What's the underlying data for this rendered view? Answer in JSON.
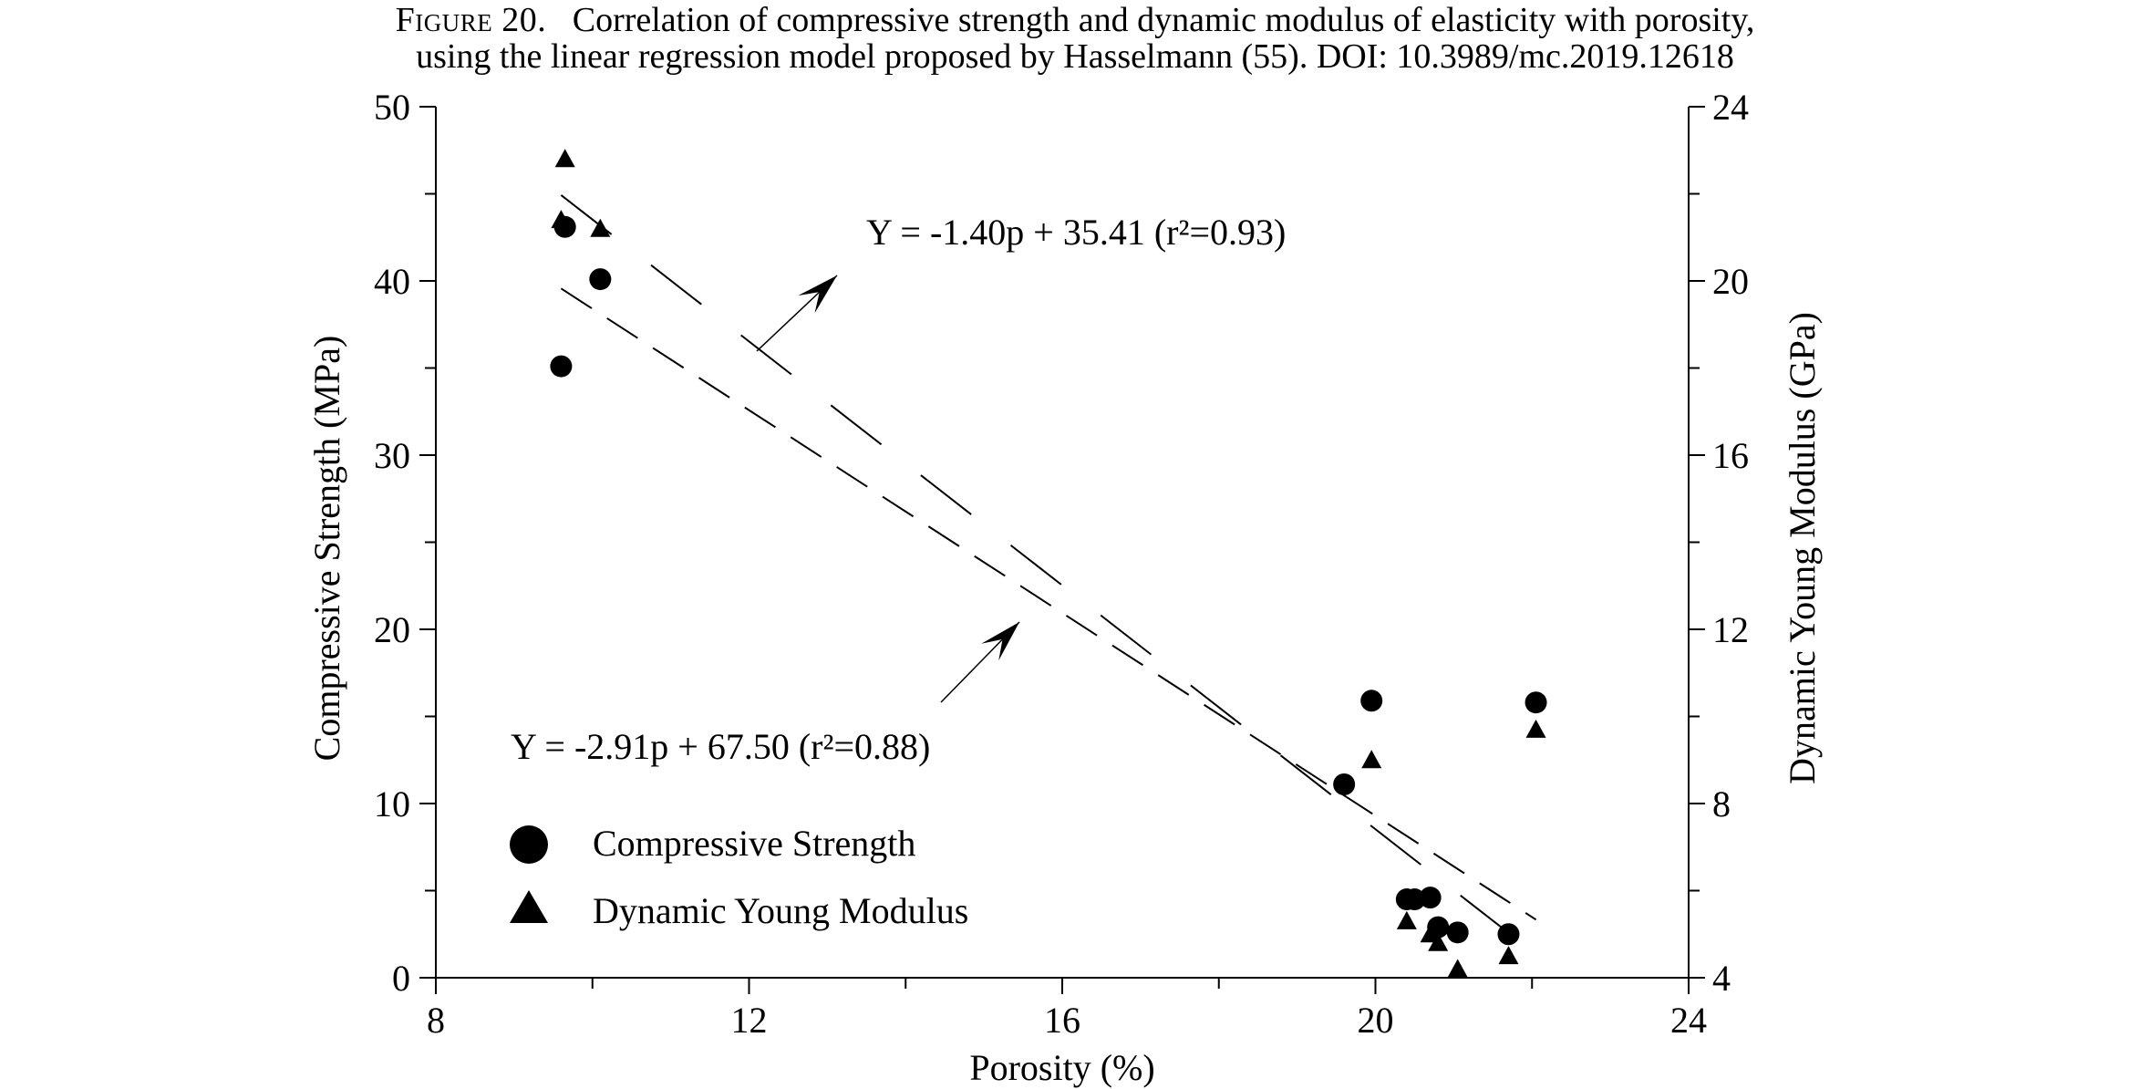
{
  "caption": {
    "label": "Figure 20.",
    "line1": "Correlation of compressive strength and dynamic modulus of elasticity with porosity,",
    "line2": "using the linear regression model proposed by Hasselmann (55). DOI: 10.3989/mc.2019.12618"
  },
  "chart_data": {
    "type": "scatter",
    "xlabel": "Porosity (%)",
    "ylabel": "Compressive Strength (MPa)",
    "y2label": "Dynamic Young Modulus (GPa)",
    "xlim": [
      8,
      24
    ],
    "ylim": [
      0,
      50
    ],
    "y2lim": [
      4,
      24
    ],
    "x_ticks": [
      8,
      12,
      16,
      20,
      24
    ],
    "y_ticks": [
      0,
      10,
      20,
      30,
      40,
      50
    ],
    "y2_ticks": [
      4,
      8,
      12,
      16,
      20,
      24
    ],
    "legend_position": "bottom-left",
    "series": [
      {
        "name": "Compressive Strength",
        "axis": "left",
        "marker": "circle",
        "x": [
          9.6,
          9.65,
          10.1,
          19.6,
          19.95,
          20.4,
          20.5,
          20.7,
          20.8,
          21.05,
          21.7,
          22.05
        ],
        "y": [
          35.1,
          43.1,
          40.1,
          11.1,
          15.9,
          4.5,
          4.5,
          4.6,
          2.9,
          2.6,
          2.5,
          15.8
        ]
      },
      {
        "name": "Dynamic Young Modulus",
        "axis": "right",
        "marker": "triangle",
        "x": [
          9.6,
          9.65,
          10.1,
          19.95,
          20.4,
          20.7,
          20.8,
          21.05,
          21.7,
          22.05
        ],
        "y": [
          21.4,
          22.8,
          21.2,
          9.0,
          5.3,
          5.0,
          4.8,
          4.2,
          4.5,
          9.7
        ]
      }
    ],
    "regressions": [
      {
        "label": "Y = -1.40p + 35.41 (r²=0.93)",
        "axis": "right",
        "slope": -1.4,
        "intercept": 35.41,
        "x_range": [
          9.6,
          22.05
        ]
      },
      {
        "label": "Y = -2.91p + 67.50 (r²=0.88)",
        "axis": "left",
        "slope": -2.91,
        "intercept": 67.5,
        "x_range": [
          9.6,
          22.05
        ]
      }
    ]
  }
}
